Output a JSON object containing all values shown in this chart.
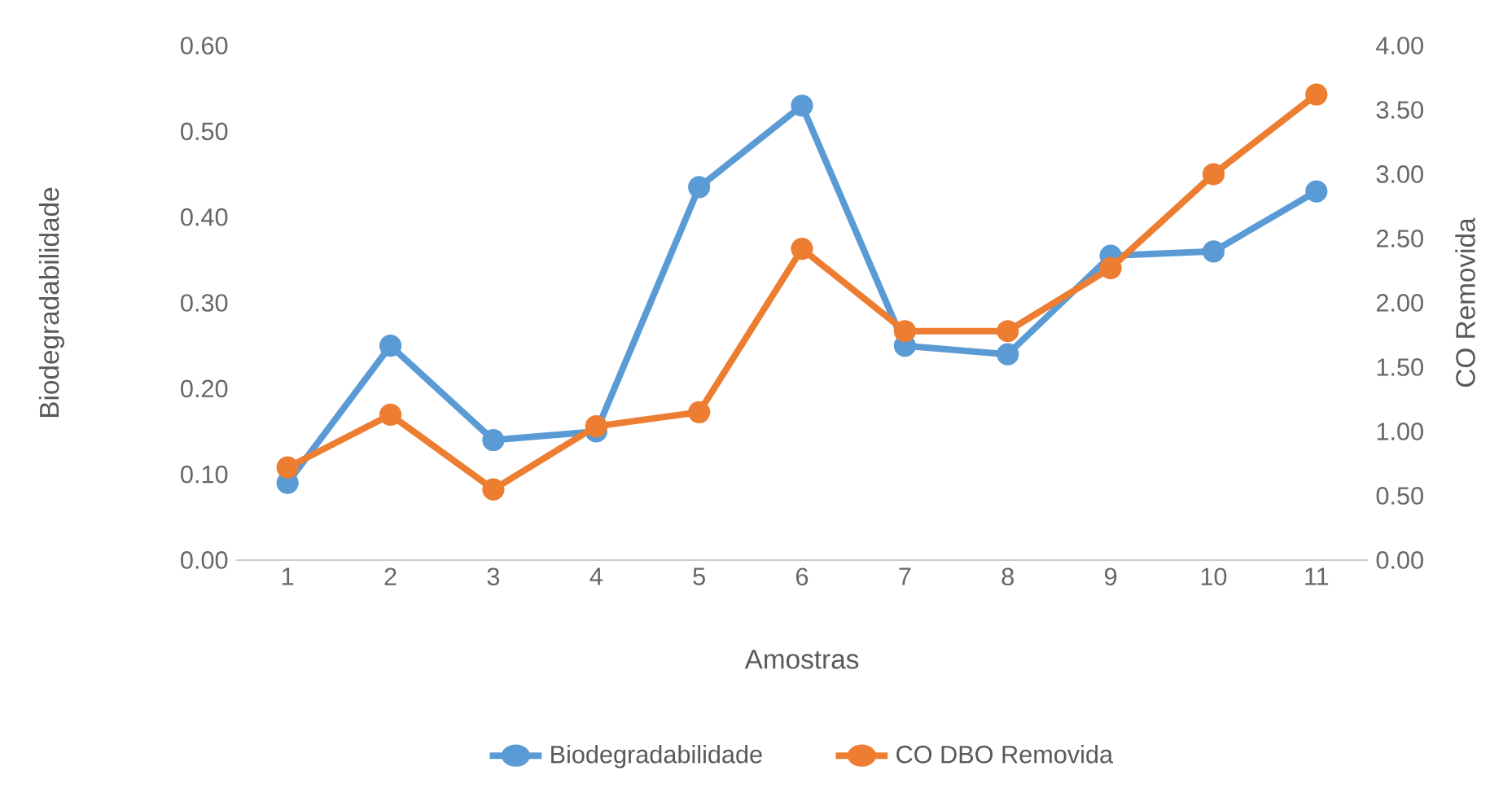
{
  "chart_data": {
    "type": "line",
    "xlabel": "Amostras",
    "ylabel": "Biodegradabilidade",
    "y2label": "CO Removida",
    "categories": [
      "1",
      "2",
      "3",
      "4",
      "5",
      "6",
      "7",
      "8",
      "9",
      "10",
      "11"
    ],
    "series": [
      {
        "name": "Biodegradabilidade",
        "color": "#5b9bd5",
        "values": [
          0.09,
          0.25,
          0.14,
          0.15,
          0.435,
          0.53,
          0.25,
          0.24,
          0.355,
          0.36,
          0.43
        ]
      },
      {
        "name": "CO DBO Removida",
        "color": "#ed7d31",
        "axis": "y2",
        "values": [
          0.72,
          1.13,
          0.55,
          1.04,
          1.15,
          2.42,
          1.78,
          1.78,
          2.27,
          3.0,
          3.62
        ]
      }
    ],
    "ylim": [
      0,
      0.6
    ],
    "yticks": [
      {
        "value": 0,
        "label": "0.00"
      },
      {
        "value": 0.1,
        "label": "0.10"
      },
      {
        "value": 0.2,
        "label": "0.20"
      },
      {
        "value": 0.3,
        "label": "0.30"
      },
      {
        "value": 0.4,
        "label": "0.40"
      },
      {
        "value": 0.5,
        "label": "0.50"
      },
      {
        "value": 0.6,
        "label": "0.60"
      }
    ],
    "y2lim": [
      0,
      4
    ],
    "y2ticks": [
      {
        "value": 0,
        "label": "0.00"
      },
      {
        "value": 0.5,
        "label": "0.50"
      },
      {
        "value": 1,
        "label": "1.00"
      },
      {
        "value": 1.5,
        "label": "1.50"
      },
      {
        "value": 2,
        "label": "2.00"
      },
      {
        "value": 2.5,
        "label": "2.50"
      },
      {
        "value": 3,
        "label": "3.00"
      },
      {
        "value": 3.5,
        "label": "3.50"
      },
      {
        "value": 4,
        "label": "4.00"
      }
    ],
    "legend": "bottom",
    "marker": "circle"
  }
}
